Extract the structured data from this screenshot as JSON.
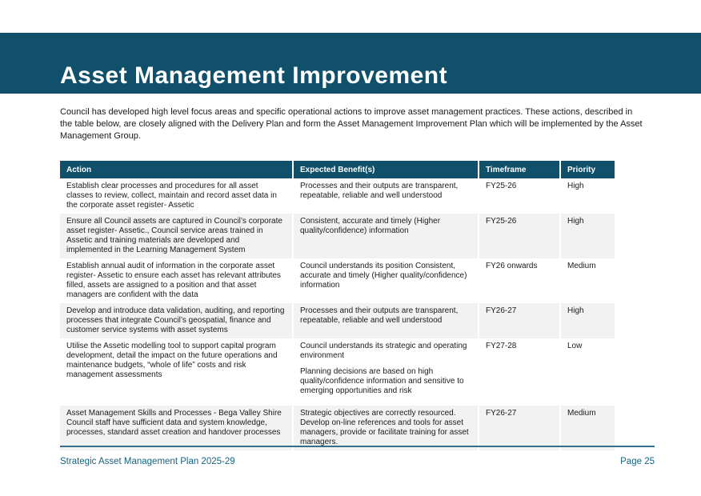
{
  "header": {
    "title": "Asset Management Improvement"
  },
  "intro": "Council has developed high level focus areas and specific operational actions to improve asset management practices. These actions, described in the table below, are closely aligned with the Delivery Plan and form the Asset Management Improvement Plan which will be implemented by the Asset Management Group.",
  "table": {
    "headers": [
      "Action",
      "Expected Benefit(s)",
      "Timeframe",
      "Priority"
    ],
    "rows": [
      {
        "action": "Establish clear processes and procedures for all asset classes to review, collect, maintain and record asset data in the corporate asset register- Assetic",
        "benefits": [
          "Processes and their outputs are transparent, repeatable, reliable and well understood"
        ],
        "timeframe": "FY25-26",
        "priority": "High"
      },
      {
        "action": "Ensure all Council assets are captured in Council’s corporate asset register- Assetic., Council service areas trained in Assetic and training materials are developed and implemented in the Learning Management System",
        "benefits": [
          "Consistent, accurate and timely (Higher quality/confidence) information"
        ],
        "timeframe": "FY25-26",
        "priority": "High"
      },
      {
        "action": "Establish annual audit of information in the corporate asset register- Assetic to ensure each asset has relevant attributes filled, assets are assigned to a position and that asset managers are confident with the data",
        "benefits": [
          "Council understands its position Consistent, accurate and timely (Higher quality/confidence) information"
        ],
        "timeframe": "FY26 onwards",
        "priority": "Medium"
      },
      {
        "action": "Develop and introduce data validation, auditing, and reporting processes that integrate Council’s geospatial, finance and customer service systems with asset systems",
        "benefits": [
          "Processes and their outputs are transparent, repeatable, reliable and well understood"
        ],
        "timeframe": "FY26-27",
        "priority": "High"
      },
      {
        "action": "Utilise the Assetic modelling tool to support capital program development, detail the impact on the future operations and maintenance budgets, “whole of life” costs and risk management assessments",
        "benefits": [
          "Council understands its strategic and operating environment",
          "Planning decisions are based on high quality/confidence information and sensitive to emerging opportunities and risk"
        ],
        "timeframe": "FY27-28",
        "priority": "Low"
      },
      {
        "action": "Asset Management Skills and Processes - Bega Valley Shire Council staff have sufficient data and system knowledge, processes, standard asset creation and handover processes",
        "benefits": [
          "Strategic objectives are correctly resourced. Develop on-line references and tools for asset managers, provide or facilitate training for asset managers."
        ],
        "timeframe": "FY26-27",
        "priority": "Medium"
      }
    ]
  },
  "footer": {
    "left": "Strategic Asset Management Plan 2025-29",
    "right": "Page 25"
  },
  "colors": {
    "banner": "#10506b",
    "table_header": "#10506b",
    "row_alt": "#f2f2f2",
    "footer_text": "#156581",
    "footer_line": "#33708c"
  }
}
